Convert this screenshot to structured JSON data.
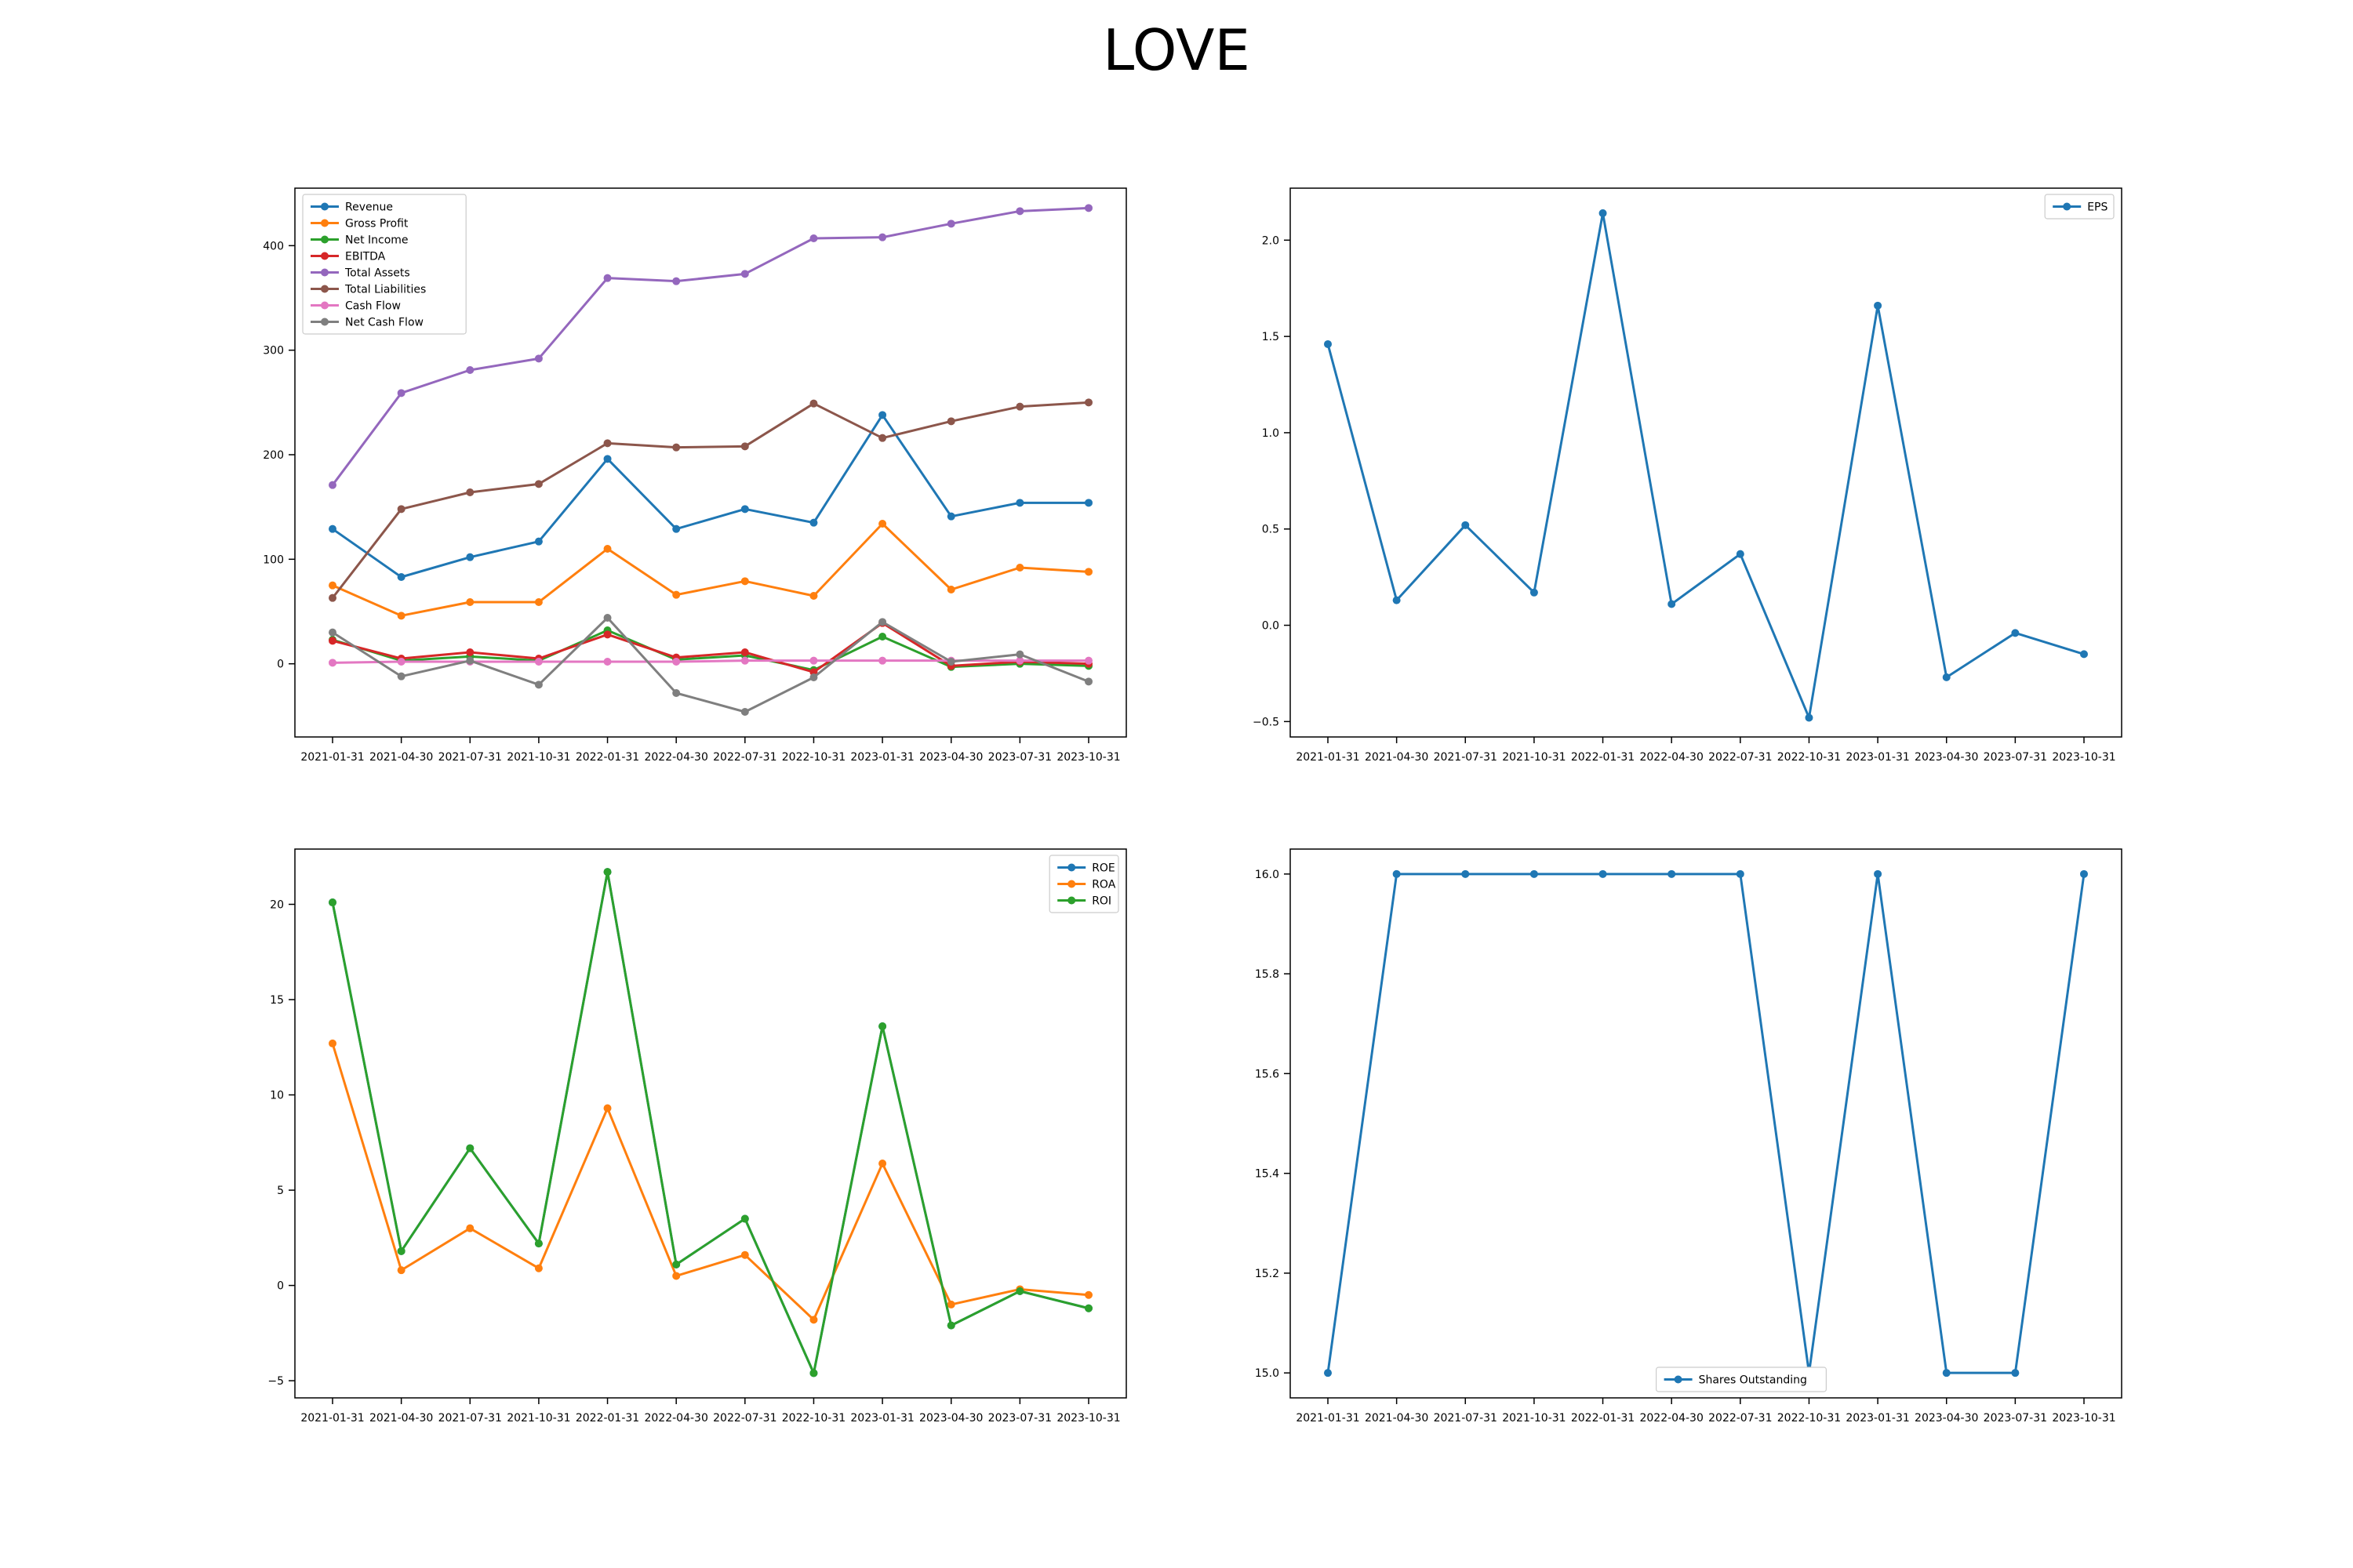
{
  "title": "LOVE",
  "colors": {
    "blue": "#1f77b4",
    "orange": "#ff7f0e",
    "green": "#2ca02c",
    "red": "#d62728",
    "purple": "#9467bd",
    "brown": "#8c564b",
    "pink": "#e377c2",
    "gray": "#7f7f7f"
  },
  "chart_data": [
    {
      "type": "line",
      "x": [
        "2021-01-31",
        "2021-04-30",
        "2021-07-31",
        "2021-10-31",
        "2022-01-31",
        "2022-04-30",
        "2022-07-31",
        "2022-10-31",
        "2023-01-31",
        "2023-04-30",
        "2023-07-31",
        "2023-10-31"
      ],
      "ylim": [
        -70,
        455
      ],
      "yticks": [
        0,
        100,
        200,
        300,
        400
      ],
      "legend": "top-left",
      "grid": false,
      "series": [
        {
          "name": "Revenue",
          "color": "#1f77b4",
          "values": [
            129,
            83,
            102,
            117,
            196,
            129,
            148,
            135,
            238,
            141,
            154,
            154
          ]
        },
        {
          "name": "Gross Profit",
          "color": "#ff7f0e",
          "values": [
            75,
            46,
            59,
            59,
            110,
            66,
            79,
            65,
            134,
            71,
            92,
            88
          ]
        },
        {
          "name": "Net Income",
          "color": "#2ca02c",
          "values": [
            23,
            3,
            7,
            3,
            32,
            4,
            8,
            -6,
            26,
            -3,
            0,
            -2
          ]
        },
        {
          "name": "EBITDA",
          "color": "#d62728",
          "values": [
            22,
            5,
            11,
            5,
            28,
            6,
            11,
            -8,
            39,
            -2,
            2,
            0
          ]
        },
        {
          "name": "Total Assets",
          "color": "#9467bd",
          "values": [
            171,
            259,
            281,
            292,
            369,
            366,
            373,
            407,
            408,
            421,
            433,
            436
          ]
        },
        {
          "name": "Total Liabilities",
          "color": "#8c564b",
          "values": [
            63,
            148,
            164,
            172,
            211,
            207,
            208,
            249,
            216,
            232,
            246,
            250
          ]
        },
        {
          "name": "Cash Flow",
          "color": "#e377c2",
          "values": [
            1,
            2,
            2,
            2,
            2,
            2,
            3,
            3,
            3,
            3,
            3,
            3
          ]
        },
        {
          "name": "Net Cash Flow",
          "color": "#7f7f7f",
          "values": [
            30,
            -12,
            3,
            -20,
            44,
            -28,
            -46,
            -13,
            40,
            2,
            9,
            -17
          ]
        }
      ]
    },
    {
      "type": "line",
      "x": [
        "2021-01-31",
        "2021-04-30",
        "2021-07-31",
        "2021-10-31",
        "2022-01-31",
        "2022-04-30",
        "2022-07-31",
        "2022-10-31",
        "2023-01-31",
        "2023-04-30",
        "2023-07-31",
        "2023-10-31"
      ],
      "ylim": [
        -0.58,
        2.27
      ],
      "yticks": [
        -0.5,
        0.0,
        0.5,
        1.0,
        1.5,
        2.0
      ],
      "yticklabels": [
        "−0.5",
        "0.0",
        "0.5",
        "1.0",
        "1.5",
        "2.0"
      ],
      "legend": "top-right",
      "grid": false,
      "series": [
        {
          "name": "EPS",
          "color": "#1f77b4",
          "values": [
            1.46,
            0.13,
            0.52,
            0.17,
            2.14,
            0.11,
            0.37,
            -0.48,
            1.66,
            -0.27,
            -0.04,
            -0.15
          ]
        }
      ]
    },
    {
      "type": "line",
      "x": [
        "2021-01-31",
        "2021-04-30",
        "2021-07-31",
        "2021-10-31",
        "2022-01-31",
        "2022-04-30",
        "2022-07-31",
        "2022-10-31",
        "2023-01-31",
        "2023-04-30",
        "2023-07-31",
        "2023-10-31"
      ],
      "ylim": [
        -5.9,
        22.9
      ],
      "yticks": [
        -5,
        0,
        5,
        10,
        15,
        20
      ],
      "yticklabels": [
        "−5",
        "0",
        "5",
        "10",
        "15",
        "20"
      ],
      "legend": "top-right",
      "grid": false,
      "series": [
        {
          "name": "ROE",
          "color": "#1f77b4",
          "values": [
            20.1,
            1.8,
            7.2,
            2.2,
            21.7,
            1.1,
            3.5,
            -4.6,
            13.6,
            -2.1,
            -0.3,
            -1.2
          ]
        },
        {
          "name": "ROA",
          "color": "#ff7f0e",
          "values": [
            12.7,
            0.8,
            3.0,
            0.9,
            9.3,
            0.5,
            1.6,
            -1.8,
            6.4,
            -1.0,
            -0.2,
            -0.5
          ]
        },
        {
          "name": "ROI",
          "color": "#2ca02c",
          "values": [
            20.1,
            1.8,
            7.2,
            2.2,
            21.7,
            1.1,
            3.5,
            -4.6,
            13.6,
            -2.1,
            -0.3,
            -1.2
          ]
        }
      ]
    },
    {
      "type": "line",
      "x": [
        "2021-01-31",
        "2021-04-30",
        "2021-07-31",
        "2021-10-31",
        "2022-01-31",
        "2022-04-30",
        "2022-07-31",
        "2022-10-31",
        "2023-01-31",
        "2023-04-30",
        "2023-07-31",
        "2023-10-31"
      ],
      "ylim": [
        14.95,
        16.05
      ],
      "yticks": [
        15.0,
        15.2,
        15.4,
        15.6,
        15.8,
        16.0
      ],
      "yticklabels": [
        "15.0",
        "15.2",
        "15.4",
        "15.6",
        "15.8",
        "16.0"
      ],
      "legend": "bottom-center",
      "grid": false,
      "series": [
        {
          "name": "Shares Outstanding",
          "color": "#1f77b4",
          "values": [
            15,
            16,
            16,
            16,
            16,
            16,
            16,
            15,
            16,
            15,
            15,
            16
          ]
        }
      ]
    }
  ]
}
